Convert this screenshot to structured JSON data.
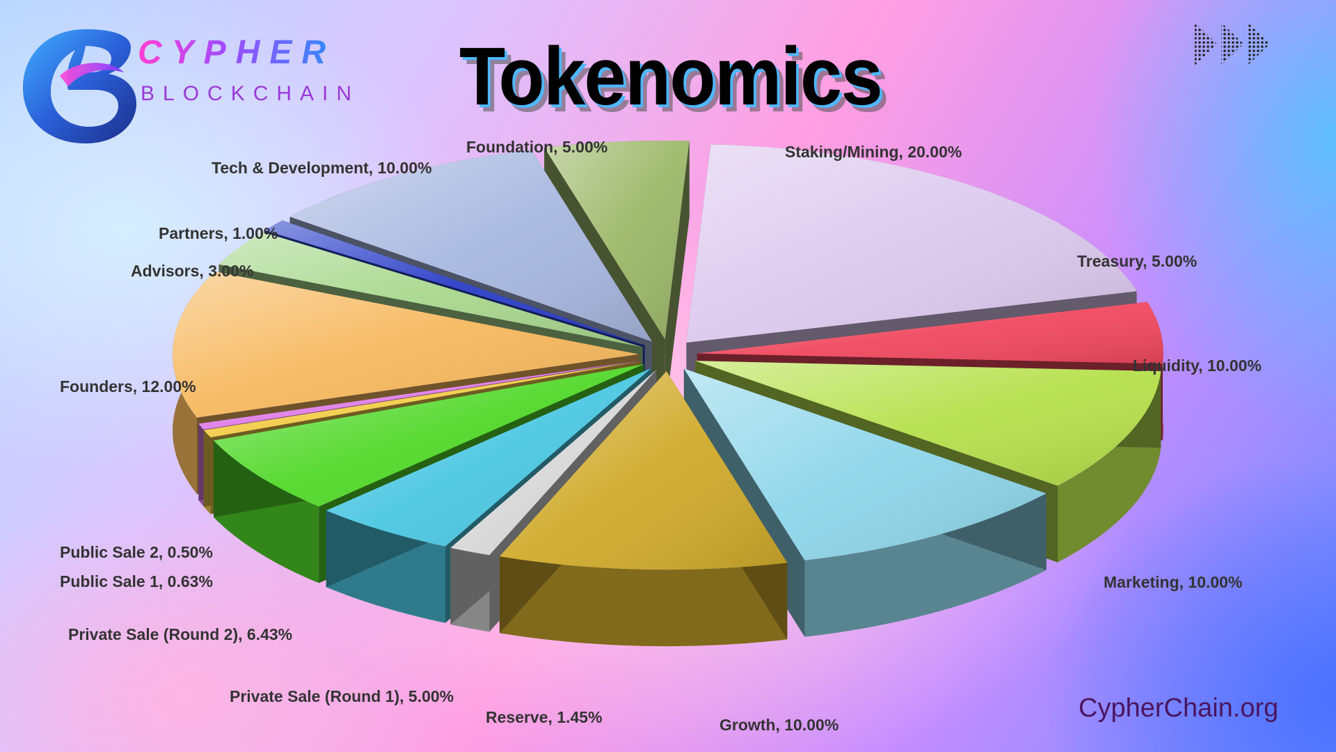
{
  "brand": {
    "name": "CYPHER",
    "tagline": "BLOCKCHAIN",
    "website": "CypherChain.org"
  },
  "icons": [
    "cypher-logo-icon",
    "triple-arrow-icon"
  ],
  "colors": {
    "title_shadow": "#4fb7ff",
    "website_text": "#4a1560"
  },
  "chart_data": {
    "type": "pie",
    "title": "Tokenomics",
    "three_d": true,
    "exploded": true,
    "legend": "none",
    "slices": [
      {
        "label": "Staking/Mining",
        "value": 20.0,
        "display": "Staking/Mining, 20.00%",
        "color": "#dcc9ee"
      },
      {
        "label": "Treasury",
        "value": 5.0,
        "display": "Treasury, 5.00%",
        "color": "#f0485e"
      },
      {
        "label": "Liquidity",
        "value": 10.0,
        "display": "Liquidity, 10.00%",
        "color": "#b6e04c"
      },
      {
        "label": "Marketing",
        "value": 10.0,
        "display": "Marketing, 10.00%",
        "color": "#8fd6ea"
      },
      {
        "label": "Growth",
        "value": 10.0,
        "display": "Growth, 10.00%",
        "color": "#d0ab2c"
      },
      {
        "label": "Reserve",
        "value": 1.45,
        "display": "Reserve, 1.45%",
        "color": "#d8d8d8"
      },
      {
        "label": "Private Sale (Round 1)",
        "value": 5.0,
        "display": "Private Sale (Round 1), 5.00%",
        "color": "#4cc7e2"
      },
      {
        "label": "Private Sale (Round 2)",
        "value": 6.43,
        "display": "Private Sale (Round 2), 6.43%",
        "color": "#52d82a"
      },
      {
        "label": "Public Sale 1",
        "value": 0.63,
        "display": "Public Sale 1, 0.63%",
        "color": "#f2cc4a"
      },
      {
        "label": "Public Sale 2",
        "value": 0.5,
        "display": "Public Sale 2, 0.50%",
        "color": "#e07ee8"
      },
      {
        "label": "Founders",
        "value": 12.0,
        "display": "Founders, 12.00%",
        "color": "#f6b85e"
      },
      {
        "label": "Advisors",
        "value": 3.0,
        "display": "Advisors, 3.00%",
        "color": "#a9d88f"
      },
      {
        "label": "Partners",
        "value": 1.0,
        "display": "Partners, 1.00%",
        "color": "#2b3fc8"
      },
      {
        "label": "Tech & Development",
        "value": 10.0,
        "display": "Tech & Development, 10.00%",
        "color": "#a8b8e0"
      },
      {
        "label": "Foundation",
        "value": 5.0,
        "display": "Foundation, 5.00%",
        "color": "#9db86a"
      }
    ]
  }
}
